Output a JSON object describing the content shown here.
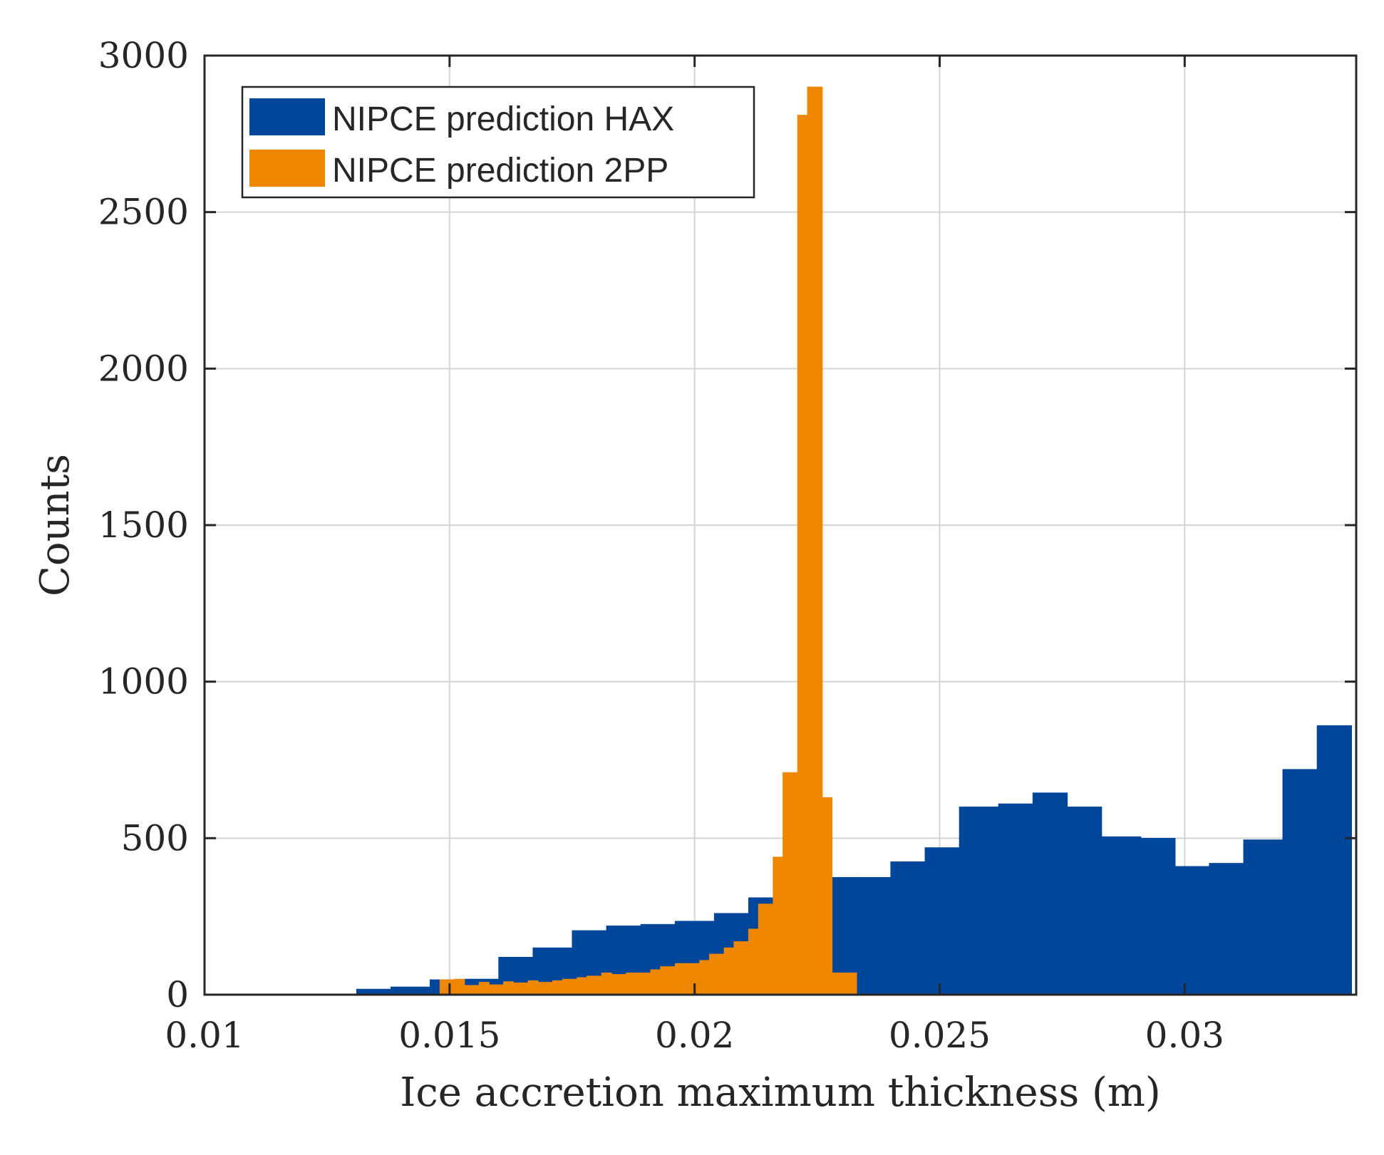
{
  "chart_data": {
    "type": "histogram",
    "title": "",
    "xlabel": "Ice accretion maximum thickness (m)",
    "ylabel": "Counts",
    "xlim": [
      0.01,
      0.0335
    ],
    "ylim": [
      0,
      3000
    ],
    "xticks": [
      0.01,
      0.015,
      0.02,
      0.025,
      0.03
    ],
    "xtick_labels": [
      "0.01",
      "0.015",
      "0.02",
      "0.025",
      "0.03"
    ],
    "yticks": [
      0,
      500,
      1000,
      1500,
      2000,
      2500,
      3000
    ],
    "ytick_labels": [
      "0",
      "500",
      "1000",
      "1500",
      "2000",
      "2500",
      "3000"
    ],
    "grid": true,
    "legend_position": "top-left",
    "series": [
      {
        "name": "NIPCE prediction HAX",
        "color": "#00479c",
        "bin_edges": [
          0.0103,
          0.011,
          0.0117,
          0.0124,
          0.0131,
          0.0138,
          0.0146,
          0.0153,
          0.016,
          0.0167,
          0.0175,
          0.0182,
          0.0189,
          0.0196,
          0.0204,
          0.0211,
          0.0218,
          0.0225,
          0.0233,
          0.024,
          0.0247,
          0.0254,
          0.0262,
          0.0269,
          0.0276,
          0.0283,
          0.0291,
          0.0298,
          0.0305,
          0.0312,
          0.032,
          0.0327,
          0.0334
        ],
        "counts": [
          0,
          0,
          0,
          2,
          18,
          25,
          48,
          50,
          120,
          150,
          205,
          220,
          225,
          235,
          260,
          310,
          375,
          375,
          375,
          425,
          470,
          600,
          610,
          645,
          600,
          505,
          500,
          410,
          420,
          495,
          720,
          860
        ]
      },
      {
        "name": "NIPCE prediction 2PP",
        "color": "#ee8600",
        "bin_edges": [
          0.0148,
          0.0151,
          0.0153,
          0.0156,
          0.0158,
          0.0161,
          0.0163,
          0.0166,
          0.0168,
          0.0171,
          0.0173,
          0.0176,
          0.0178,
          0.0181,
          0.0183,
          0.0186,
          0.0188,
          0.0191,
          0.0193,
          0.0196,
          0.0198,
          0.0201,
          0.0203,
          0.0206,
          0.0208,
          0.0211,
          0.0213,
          0.0216,
          0.0218,
          0.0221,
          0.0223,
          0.0226,
          0.0228,
          0.0231,
          0.0233
        ],
        "counts": [
          48,
          50,
          30,
          40,
          32,
          42,
          38,
          45,
          40,
          45,
          50,
          55,
          60,
          70,
          65,
          70,
          70,
          80,
          90,
          100,
          100,
          110,
          130,
          150,
          170,
          210,
          290,
          440,
          710,
          2810,
          2900,
          630,
          70,
          70
        ]
      }
    ]
  }
}
